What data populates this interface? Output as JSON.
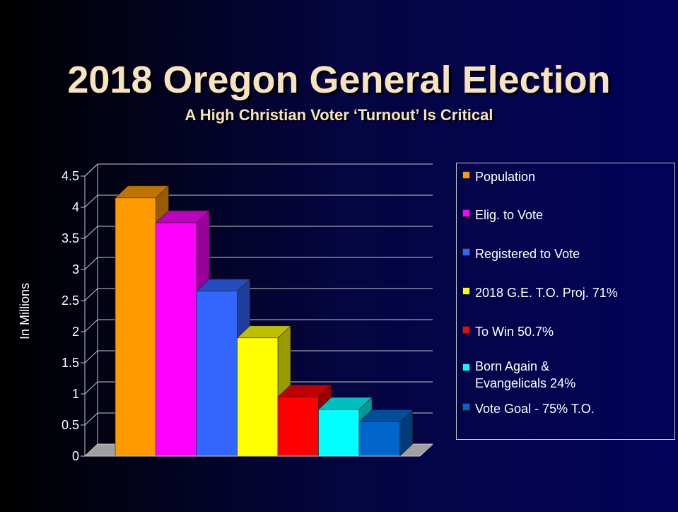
{
  "slide": {
    "title": "2018 Oregon General Election",
    "subtitle": "A High Christian Voter ‘Turnout’ Is Critical"
  },
  "chart_data": {
    "type": "bar",
    "title": "2018 Oregon General Election",
    "subtitle": "A High Christian Voter ‘Turnout’ Is Critical",
    "ylabel": "In Millions",
    "ylim": [
      0,
      4.5
    ],
    "yticks": [
      "0",
      "0.5",
      "1",
      "1.5",
      "2",
      "2.5",
      "3",
      "3.5",
      "4",
      "4.5"
    ],
    "grid": true,
    "legend_position": "right",
    "style": "3d-column",
    "series": [
      {
        "name": "Population",
        "value": 4.15,
        "color": "#ff9900"
      },
      {
        "name": "Elig. to Vote",
        "value": 3.75,
        "color": "#ff00ff"
      },
      {
        "name": "Registered to Vote",
        "value": 2.65,
        "color": "#3366ff"
      },
      {
        "name": "2018 G.E. T.O. Proj. 71%",
        "value": 1.9,
        "color": "#ffff00"
      },
      {
        "name": "To Win 50.7%",
        "value": 0.95,
        "color": "#ff0000"
      },
      {
        "name": "Born Again & Evangelicals 24%",
        "value": 0.75,
        "color": "#00ffff"
      },
      {
        "name": "Vote Goal - 75% T.O.",
        "value": 0.55,
        "color": "#0066cc"
      }
    ]
  },
  "legend": {
    "items": [
      {
        "label": "Population",
        "color": "#ff9900"
      },
      {
        "label": "Elig. to Vote",
        "color": "#ff00ff"
      },
      {
        "label": "Registered to Vote",
        "color": "#3366ff"
      },
      {
        "label": "2018 G.E. T.O. Proj. 71%",
        "color": "#ffff00"
      },
      {
        "label": "To Win 50.7%",
        "color": "#ff0000"
      },
      {
        "label": "Born Again &",
        "label2": "Evangelicals 24%",
        "color": "#00ffff"
      },
      {
        "label": "Vote Goal - 75% T.O.",
        "color": "#0066cc"
      }
    ]
  }
}
